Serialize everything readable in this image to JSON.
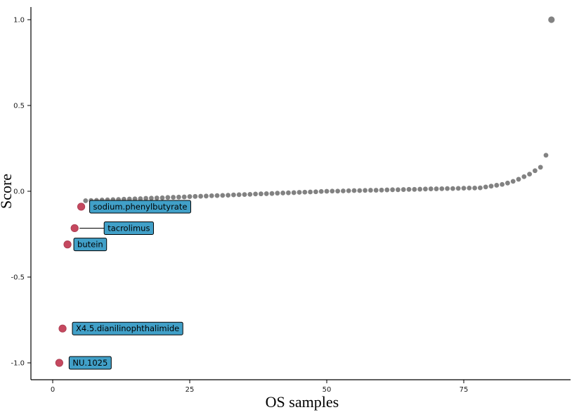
{
  "chart_data": {
    "type": "scatter",
    "title": "",
    "xlabel": "OS samples",
    "ylabel": "Score",
    "xlim": [
      -4,
      95
    ],
    "ylim": [
      -1.08,
      1.05
    ],
    "grid": false,
    "legend": "none",
    "background_color": "#ffffff",
    "axis_color": "#000000",
    "x_ticks": [
      "0",
      "25",
      "50",
      "75"
    ],
    "x_tick_values": [
      0,
      25,
      50,
      75
    ],
    "y_ticks": [
      "1.0",
      "0.5",
      "0.0",
      "-0.5",
      "-1.0"
    ],
    "y_tick_values": [
      1.0,
      0.5,
      0.0,
      -0.5,
      -1.0
    ],
    "series": [
      {
        "name": "os-sample-scores",
        "type": "scatter",
        "color": "#828282",
        "marker": "circle",
        "points": [
          [
            6,
            -0.055
          ],
          [
            7,
            -0.054
          ],
          [
            8,
            -0.053
          ],
          [
            9,
            -0.051
          ],
          [
            10,
            -0.05
          ],
          [
            11,
            -0.049
          ],
          [
            12,
            -0.048
          ],
          [
            13,
            -0.046
          ],
          [
            14,
            -0.045
          ],
          [
            15,
            -0.044
          ],
          [
            16,
            -0.043
          ],
          [
            17,
            -0.041
          ],
          [
            18,
            -0.04
          ],
          [
            19,
            -0.039
          ],
          [
            20,
            -0.038
          ],
          [
            21,
            -0.036
          ],
          [
            22,
            -0.035
          ],
          [
            23,
            -0.034
          ],
          [
            24,
            -0.033
          ],
          [
            25,
            -0.031
          ],
          [
            26,
            -0.03
          ],
          [
            27,
            -0.029
          ],
          [
            28,
            -0.028
          ],
          [
            29,
            -0.026
          ],
          [
            30,
            -0.025
          ],
          [
            31,
            -0.024
          ],
          [
            32,
            -0.023
          ],
          [
            33,
            -0.021
          ],
          [
            34,
            -0.02
          ],
          [
            35,
            -0.019
          ],
          [
            36,
            -0.018
          ],
          [
            37,
            -0.016
          ],
          [
            38,
            -0.015
          ],
          [
            39,
            -0.014
          ],
          [
            40,
            -0.013
          ],
          [
            41,
            -0.011
          ],
          [
            42,
            -0.01
          ],
          [
            43,
            -0.009
          ],
          [
            44,
            -0.008
          ],
          [
            45,
            -0.006
          ],
          [
            46,
            -0.005
          ],
          [
            47,
            -0.004
          ],
          [
            48,
            -0.003
          ],
          [
            49,
            -0.001
          ],
          [
            50,
            0
          ],
          [
            51,
            0.001
          ],
          [
            52,
            0.001
          ],
          [
            53,
            0.002
          ],
          [
            54,
            0.003
          ],
          [
            55,
            0.004
          ],
          [
            56,
            0.004
          ],
          [
            57,
            0.005
          ],
          [
            58,
            0.006
          ],
          [
            59,
            0.006
          ],
          [
            60,
            0.007
          ],
          [
            61,
            0.008
          ],
          [
            62,
            0.009
          ],
          [
            63,
            0.009
          ],
          [
            64,
            0.01
          ],
          [
            65,
            0.011
          ],
          [
            66,
            0.011
          ],
          [
            67,
            0.012
          ],
          [
            68,
            0.013
          ],
          [
            69,
            0.014
          ],
          [
            70,
            0.014
          ],
          [
            71,
            0.015
          ],
          [
            72,
            0.016
          ],
          [
            73,
            0.016
          ],
          [
            74,
            0.017
          ],
          [
            75,
            0.018
          ],
          [
            76,
            0.019
          ],
          [
            77,
            0.019
          ],
          [
            78,
            0.02
          ],
          [
            79,
            0.025
          ],
          [
            80,
            0.03
          ],
          [
            81,
            0.035
          ],
          [
            82,
            0.04
          ],
          [
            83,
            0.048
          ],
          [
            84,
            0.058
          ],
          [
            85,
            0.07
          ],
          [
            86,
            0.085
          ],
          [
            87,
            0.1
          ],
          [
            88,
            0.12
          ],
          [
            89,
            0.14
          ],
          [
            90,
            0.21
          ],
          [
            91,
            1.0
          ]
        ]
      },
      {
        "name": "highlighted-drugs",
        "type": "scatter",
        "color": "#c5485f",
        "label_fill": "#41a0c8",
        "label_border": "#000000",
        "label_text_color": "#000000",
        "points": [
          {
            "x": 5.2,
            "y": -0.09,
            "label": "sodium.phenylbutyrate",
            "dx": 12,
            "leader": false
          },
          {
            "x": 4.0,
            "y": -0.215,
            "label": "tacrolimus",
            "dx": 42,
            "leader": true
          },
          {
            "x": 2.7,
            "y": -0.31,
            "label": "butein",
            "dx": 9,
            "leader": false
          },
          {
            "x": 1.8,
            "y": -0.8,
            "label": "X4.5.dianilinophthalimide",
            "dx": 14,
            "leader": false
          },
          {
            "x": 1.2,
            "y": -1.0,
            "label": "NU.1025",
            "dx": 14,
            "leader": false
          }
        ]
      }
    ]
  }
}
